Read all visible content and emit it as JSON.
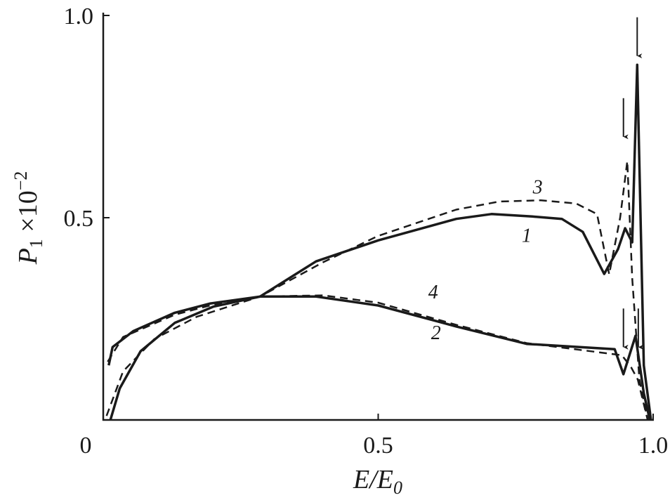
{
  "chart_data": {
    "type": "line",
    "xlabel": {
      "main": "E/E",
      "sub": "0"
    },
    "ylabel": {
      "main": "P",
      "sub": "1",
      "mult": " ×10",
      "sup": "−2"
    },
    "xlim": [
      0,
      1.0
    ],
    "ylim": [
      0,
      1.0
    ],
    "grid": false,
    "xticks": [
      {
        "v": 0,
        "label": "0"
      },
      {
        "v": 0.5,
        "label": "0.5"
      },
      {
        "v": 1.0,
        "label": "1.0"
      }
    ],
    "yticks": [
      {
        "v": 0.5,
        "label": "0.5"
      },
      {
        "v": 1.0,
        "label": "1.0"
      }
    ],
    "series": [
      {
        "name": "1",
        "style": "solid",
        "label_at": [
          0.77,
          0.44
        ],
        "x": [
          0.013,
          0.03,
          0.068,
          0.13,
          0.2,
          0.285,
          0.387,
          0.5,
          0.642,
          0.706,
          0.78,
          0.834,
          0.872,
          0.911,
          0.936,
          0.949,
          0.962,
          0.971,
          0.983,
          0.996
        ],
        "y": [
          0,
          0.078,
          0.17,
          0.24,
          0.28,
          0.305,
          0.392,
          0.444,
          0.497,
          0.509,
          0.503,
          0.497,
          0.465,
          0.361,
          0.422,
          0.474,
          0.439,
          0.878,
          0.135,
          0
        ]
      },
      {
        "name": "2",
        "style": "solid",
        "label_at": [
          0.605,
          0.2
        ],
        "x": [
          0.01,
          0.017,
          0.055,
          0.13,
          0.195,
          0.285,
          0.387,
          0.5,
          0.642,
          0.77,
          0.93,
          0.946,
          0.968,
          0.983,
          0.994
        ],
        "y": [
          0.135,
          0.18,
          0.22,
          0.265,
          0.288,
          0.305,
          0.305,
          0.283,
          0.231,
          0.188,
          0.175,
          0.113,
          0.208,
          0.066,
          0
        ]
      },
      {
        "name": "3",
        "style": "dashed",
        "label_at": [
          0.79,
          0.56
        ],
        "x": [
          0.006,
          0.036,
          0.093,
          0.17,
          0.285,
          0.4,
          0.5,
          0.642,
          0.72,
          0.796,
          0.86,
          0.898,
          0.92,
          0.94,
          0.953,
          0.962,
          0.975,
          0.99
        ],
        "y": [
          0.01,
          0.12,
          0.2,
          0.255,
          0.305,
          0.39,
          0.455,
          0.52,
          0.54,
          0.543,
          0.535,
          0.509,
          0.36,
          0.5,
          0.64,
          0.35,
          0.1,
          0
        ]
      },
      {
        "name": "4",
        "style": "dashed",
        "label_at": [
          0.6,
          0.3
        ],
        "x": [
          0.008,
          0.036,
          0.13,
          0.2,
          0.285,
          0.4,
          0.5,
          0.642,
          0.77,
          0.943,
          0.96,
          0.972,
          0.99
        ],
        "y": [
          0.144,
          0.205,
          0.26,
          0.285,
          0.305,
          0.308,
          0.29,
          0.235,
          0.19,
          0.16,
          0.13,
          0.1,
          0
        ]
      }
    ],
    "arrows": [
      {
        "x": 0.971,
        "y_tip": 0.9
      },
      {
        "x": 0.946,
        "y_tip": 0.7
      },
      {
        "x": 0.946,
        "y_tip": 0.18
      },
      {
        "x": 0.973,
        "y_tip": 0.18
      }
    ]
  }
}
